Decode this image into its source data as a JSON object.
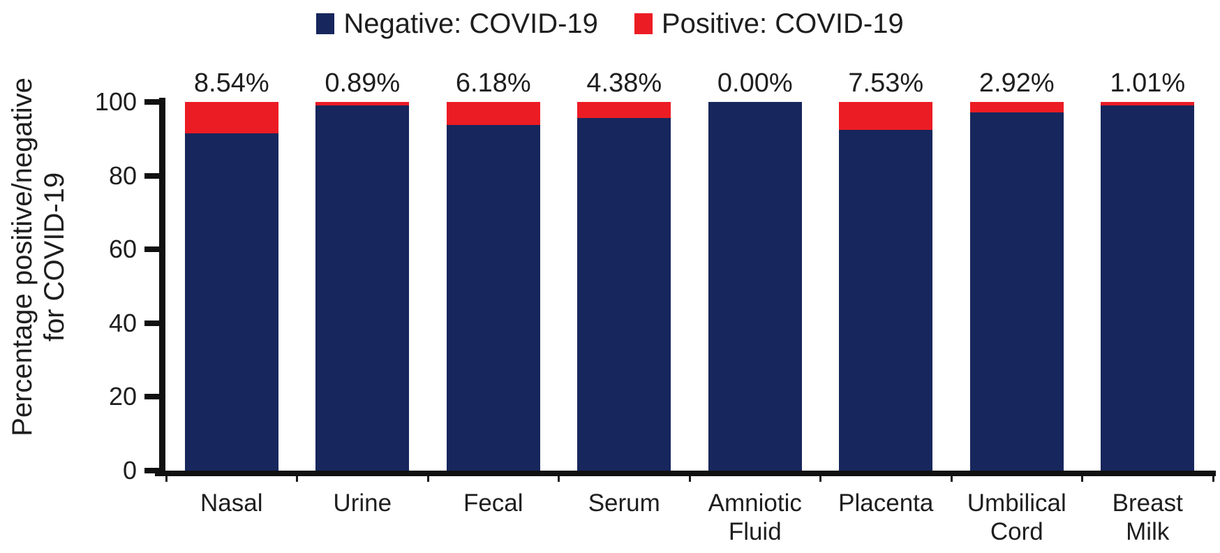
{
  "figure": {
    "background": "#ffffff",
    "text_color": "#1e1e1e",
    "axis_color": "#111111"
  },
  "legend": {
    "position": "top-center",
    "items": [
      {
        "label": "Negative: COVID-19",
        "color": "#17265C",
        "swatch": "square"
      },
      {
        "label": "Positive: COVID-19",
        "color": "#EC1C24",
        "swatch": "square"
      }
    ]
  },
  "chart_data": {
    "type": "bar",
    "subtype": "stacked-100-percent",
    "orientation": "vertical",
    "title": "",
    "xlabel": "",
    "ylabel": "Percentage positive/negative for COVID-19",
    "ylabel_lines": [
      "Percentage positive/negative",
      "for COVID-19"
    ],
    "categories": [
      "Nasal",
      "Urine",
      "Fecal",
      "Serum",
      "Amniotic Fluid",
      "Placenta",
      "Umbilical Cord",
      "Breast Milk"
    ],
    "series": [
      {
        "name": "Negative: COVID-19",
        "color": "#17265C",
        "values": [
          91.46,
          99.11,
          93.82,
          95.62,
          100.0,
          92.47,
          97.08,
          98.99
        ]
      },
      {
        "name": "Positive: COVID-19",
        "color": "#EC1C24",
        "values": [
          8.54,
          0.89,
          6.18,
          4.38,
          0.0,
          7.53,
          2.92,
          1.01
        ]
      }
    ],
    "bar_value_labels": [
      "8.54%",
      "0.89%",
      "6.18%",
      "4.38%",
      "0.00%",
      "7.53%",
      "2.92%",
      "1.01%"
    ],
    "yticks": [
      0,
      20,
      40,
      60,
      80,
      100
    ],
    "ylim": [
      0,
      100
    ],
    "grid": false,
    "legend_position": "top"
  }
}
